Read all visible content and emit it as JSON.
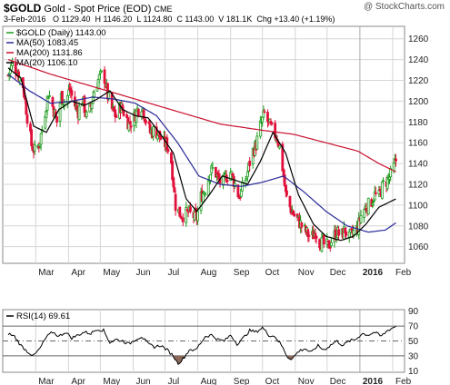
{
  "header": {
    "symbol": "$GOLD",
    "name": "Gold - Spot Price (EOD)",
    "exchange": "CME",
    "copyright": "@ StockCharts.com",
    "date": "3-Feb-2016",
    "open": "O 1129.40",
    "high": "H 1146.20",
    "low": "L 1124.80",
    "close": "C 1143.00",
    "volume": "V 181.1K",
    "change": "Chg +13.40 (+1.19%)"
  },
  "legend": {
    "main": "$GOLD (Daily) 1143.00",
    "ma50": "MA(50) 1083.45",
    "ma200": "MA(200) 1131.86",
    "ma20": "MA(20) 1106.10",
    "rsi": "RSI(14) 69.61"
  },
  "colors": {
    "up": "#1a9a1a",
    "down": "#e0103a",
    "ma50": "#2a2a9a",
    "ma200": "#c8102e",
    "ma20": "#000000",
    "grid": "#d6d6d6",
    "rsi_fill": "#8c6a5a"
  },
  "chart_data": {
    "type": "candlestick",
    "price_axis": {
      "ylim": [
        1044,
        1272
      ],
      "ticks": [
        1060,
        1080,
        1100,
        1120,
        1140,
        1160,
        1180,
        1200,
        1220,
        1240,
        1260
      ]
    },
    "rsi_axis": {
      "ylim": [
        8,
        92
      ],
      "ticks": [
        10,
        30,
        50,
        70,
        90
      ],
      "guides": [
        30,
        50,
        70
      ]
    },
    "month_labels": [
      {
        "label": "Mar",
        "day": 26
      },
      {
        "label": "Apr",
        "day": 57
      },
      {
        "label": "May",
        "day": 87
      },
      {
        "label": "Jun",
        "day": 118
      },
      {
        "label": "Jul",
        "day": 148
      },
      {
        "label": "Aug",
        "day": 179
      },
      {
        "label": "Sep",
        "day": 210
      },
      {
        "label": "Oct",
        "day": 240
      },
      {
        "label": "Nov",
        "day": 271
      },
      {
        "label": "Dec",
        "day": 301
      },
      {
        "label": "2016",
        "day": 332
      },
      {
        "label": "Feb",
        "day": 363
      }
    ],
    "range_days": [
      0,
      369
    ],
    "anchors": [
      [
        0,
        1225
      ],
      [
        4,
        1236
      ],
      [
        8,
        1230
      ],
      [
        14,
        1215
      ],
      [
        18,
        1185
      ],
      [
        22,
        1158
      ],
      [
        26,
        1150
      ],
      [
        30,
        1162
      ],
      [
        34,
        1185
      ],
      [
        38,
        1208
      ],
      [
        42,
        1195
      ],
      [
        46,
        1180
      ],
      [
        50,
        1205
      ],
      [
        54,
        1198
      ],
      [
        58,
        1212
      ],
      [
        62,
        1198
      ],
      [
        66,
        1190
      ],
      [
        70,
        1202
      ],
      [
        74,
        1185
      ],
      [
        78,
        1195
      ],
      [
        82,
        1215
      ],
      [
        86,
        1222
      ],
      [
        90,
        1228
      ],
      [
        94,
        1205
      ],
      [
        98,
        1192
      ],
      [
        102,
        1185
      ],
      [
        106,
        1195
      ],
      [
        110,
        1188
      ],
      [
        114,
        1178
      ],
      [
        118,
        1182
      ],
      [
        122,
        1192
      ],
      [
        126,
        1196
      ],
      [
        130,
        1182
      ],
      [
        134,
        1170
      ],
      [
        138,
        1172
      ],
      [
        142,
        1168
      ],
      [
        146,
        1160
      ],
      [
        150,
        1158
      ],
      [
        154,
        1142
      ],
      [
        158,
        1100
      ],
      [
        162,
        1092
      ],
      [
        166,
        1090
      ],
      [
        170,
        1093
      ],
      [
        174,
        1090
      ],
      [
        178,
        1088
      ],
      [
        182,
        1108
      ],
      [
        186,
        1116
      ],
      [
        190,
        1130
      ],
      [
        194,
        1136
      ],
      [
        198,
        1125
      ],
      [
        202,
        1120
      ],
      [
        206,
        1128
      ],
      [
        210,
        1132
      ],
      [
        214,
        1120
      ],
      [
        218,
        1108
      ],
      [
        222,
        1118
      ],
      [
        226,
        1132
      ],
      [
        230,
        1150
      ],
      [
        234,
        1158
      ],
      [
        238,
        1176
      ],
      [
        242,
        1188
      ],
      [
        246,
        1178
      ],
      [
        250,
        1170
      ],
      [
        254,
        1165
      ],
      [
        258,
        1145
      ],
      [
        262,
        1110
      ],
      [
        266,
        1098
      ],
      [
        270,
        1090
      ],
      [
        274,
        1085
      ],
      [
        278,
        1078
      ],
      [
        282,
        1073
      ],
      [
        286,
        1068
      ],
      [
        290,
        1075
      ],
      [
        294,
        1065
      ],
      [
        298,
        1062
      ],
      [
        302,
        1060
      ],
      [
        306,
        1068
      ],
      [
        310,
        1074
      ],
      [
        314,
        1070
      ],
      [
        318,
        1076
      ],
      [
        322,
        1068
      ],
      [
        326,
        1074
      ],
      [
        330,
        1078
      ],
      [
        334,
        1094
      ],
      [
        338,
        1098
      ],
      [
        342,
        1102
      ],
      [
        346,
        1110
      ],
      [
        350,
        1108
      ],
      [
        354,
        1120
      ],
      [
        358,
        1124
      ],
      [
        362,
        1130
      ],
      [
        366,
        1143
      ]
    ],
    "ma_anchors": {
      "ma200": [
        [
          0,
          1240
        ],
        [
          40,
          1226
        ],
        [
          80,
          1214
        ],
        [
          120,
          1202
        ],
        [
          160,
          1190
        ],
        [
          200,
          1178
        ],
        [
          240,
          1172
        ],
        [
          270,
          1168
        ],
        [
          300,
          1160
        ],
        [
          330,
          1152
        ],
        [
          350,
          1140
        ],
        [
          366,
          1132
        ]
      ],
      "ma50": [
        [
          0,
          1226
        ],
        [
          20,
          1210
        ],
        [
          40,
          1198
        ],
        [
          60,
          1200
        ],
        [
          80,
          1204
        ],
        [
          100,
          1202
        ],
        [
          120,
          1198
        ],
        [
          140,
          1186
        ],
        [
          160,
          1160
        ],
        [
          180,
          1128
        ],
        [
          200,
          1120
        ],
        [
          220,
          1118
        ],
        [
          240,
          1122
        ],
        [
          260,
          1128
        ],
        [
          280,
          1112
        ],
        [
          300,
          1094
        ],
        [
          320,
          1080
        ],
        [
          340,
          1074
        ],
        [
          356,
          1076
        ],
        [
          366,
          1083
        ]
      ],
      "ma20": [
        [
          0,
          1232
        ],
        [
          12,
          1222
        ],
        [
          24,
          1176
        ],
        [
          36,
          1170
        ],
        [
          48,
          1192
        ],
        [
          60,
          1200
        ],
        [
          72,
          1196
        ],
        [
          84,
          1202
        ],
        [
          96,
          1210
        ],
        [
          108,
          1192
        ],
        [
          120,
          1186
        ],
        [
          132,
          1184
        ],
        [
          144,
          1168
        ],
        [
          156,
          1150
        ],
        [
          168,
          1106
        ],
        [
          178,
          1094
        ],
        [
          190,
          1110
        ],
        [
          202,
          1128
        ],
        [
          214,
          1124
        ],
        [
          226,
          1120
        ],
        [
          238,
          1142
        ],
        [
          250,
          1170
        ],
        [
          262,
          1150
        ],
        [
          274,
          1110
        ],
        [
          288,
          1082
        ],
        [
          300,
          1070
        ],
        [
          314,
          1066
        ],
        [
          326,
          1070
        ],
        [
          338,
          1082
        ],
        [
          350,
          1098
        ],
        [
          366,
          1106
        ]
      ]
    },
    "rsi_anchors": [
      [
        0,
        60
      ],
      [
        6,
        56
      ],
      [
        12,
        44
      ],
      [
        18,
        36
      ],
      [
        24,
        30
      ],
      [
        30,
        40
      ],
      [
        36,
        55
      ],
      [
        42,
        62
      ],
      [
        48,
        56
      ],
      [
        54,
        62
      ],
      [
        60,
        54
      ],
      [
        66,
        58
      ],
      [
        72,
        62
      ],
      [
        78,
        60
      ],
      [
        84,
        66
      ],
      [
        90,
        64
      ],
      [
        96,
        48
      ],
      [
        102,
        52
      ],
      [
        108,
        50
      ],
      [
        114,
        46
      ],
      [
        120,
        52
      ],
      [
        126,
        56
      ],
      [
        132,
        46
      ],
      [
        138,
        42
      ],
      [
        144,
        44
      ],
      [
        150,
        38
      ],
      [
        156,
        30
      ],
      [
        160,
        20
      ],
      [
        164,
        24
      ],
      [
        168,
        32
      ],
      [
        172,
        40
      ],
      [
        176,
        36
      ],
      [
        180,
        44
      ],
      [
        186,
        56
      ],
      [
        192,
        58
      ],
      [
        198,
        52
      ],
      [
        204,
        50
      ],
      [
        210,
        58
      ],
      [
        216,
        46
      ],
      [
        222,
        54
      ],
      [
        228,
        64
      ],
      [
        234,
        62
      ],
      [
        240,
        68
      ],
      [
        246,
        58
      ],
      [
        252,
        56
      ],
      [
        258,
        44
      ],
      [
        264,
        28
      ],
      [
        268,
        26
      ],
      [
        274,
        36
      ],
      [
        280,
        40
      ],
      [
        286,
        34
      ],
      [
        292,
        44
      ],
      [
        298,
        38
      ],
      [
        304,
        44
      ],
      [
        310,
        50
      ],
      [
        316,
        44
      ],
      [
        322,
        50
      ],
      [
        328,
        52
      ],
      [
        334,
        60
      ],
      [
        340,
        58
      ],
      [
        346,
        62
      ],
      [
        352,
        56
      ],
      [
        358,
        64
      ],
      [
        366,
        70
      ]
    ]
  }
}
